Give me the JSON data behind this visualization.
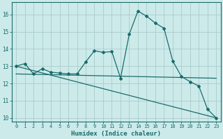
{
  "xlabel": "Humidex (Indice chaleur)",
  "bg_color": "#cceaea",
  "grid_color": "#aacccc",
  "line_color": "#1a6b6b",
  "xlim": [
    -0.5,
    23.5
  ],
  "ylim": [
    9.8,
    16.7
  ],
  "yticks": [
    10,
    11,
    12,
    13,
    14,
    15,
    16
  ],
  "xticks": [
    0,
    1,
    2,
    3,
    4,
    5,
    6,
    7,
    8,
    9,
    10,
    11,
    12,
    13,
    14,
    15,
    16,
    17,
    18,
    19,
    20,
    21,
    22,
    23
  ],
  "curve1_x": [
    0,
    1,
    2,
    3,
    4,
    5,
    6,
    7,
    8,
    9,
    10,
    11,
    12,
    13,
    14,
    15,
    16,
    17,
    18,
    19,
    20,
    21,
    22,
    23
  ],
  "curve1_y": [
    13.0,
    13.15,
    12.55,
    12.85,
    12.65,
    12.6,
    12.55,
    12.55,
    13.25,
    13.9,
    13.8,
    13.85,
    12.3,
    14.85,
    16.2,
    15.9,
    15.5,
    15.2,
    13.3,
    12.4,
    12.1,
    11.85,
    10.5,
    10.0
  ],
  "curve2_x": [
    0,
    23
  ],
  "curve2_y": [
    12.55,
    12.3
  ],
  "curve3_x": [
    0,
    23
  ],
  "curve3_y": [
    13.0,
    10.0
  ]
}
